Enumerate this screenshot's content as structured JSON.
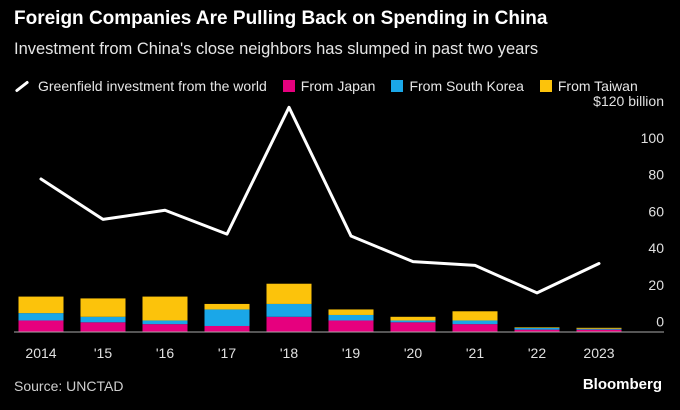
{
  "header": {
    "title": "Foreign Companies Are Pulling Back on Spending in China",
    "subtitle": "Investment from China's close neighbors has slumped in past two years"
  },
  "legend": [
    {
      "label": "Greenfield investment from the world",
      "kind": "line",
      "color": "#ffffff"
    },
    {
      "label": "From Japan",
      "kind": "box",
      "color": "#e6007e"
    },
    {
      "label": "From South Korea",
      "kind": "box",
      "color": "#1aa7e8"
    },
    {
      "label": "From Taiwan",
      "kind": "box",
      "color": "#fcc30b"
    }
  ],
  "chart_data": {
    "type": "bar",
    "categories": [
      "2014",
      "'15",
      "'16",
      "'17",
      "'18",
      "'19",
      "'20",
      "'21",
      "'22",
      "2023"
    ],
    "stacked": true,
    "series": [
      {
        "name": "From Japan",
        "color": "#e6007e",
        "values": [
          6,
          5,
          4,
          3,
          8,
          6,
          5,
          4,
          1,
          1
        ]
      },
      {
        "name": "From South Korea",
        "color": "#1aa7e8",
        "values": [
          4,
          3,
          2,
          9,
          7,
          3,
          1,
          2,
          1,
          0.5
        ]
      },
      {
        "name": "From Taiwan",
        "color": "#fcc30b",
        "values": [
          9,
          10,
          13,
          3,
          11,
          3,
          2,
          5,
          0.3,
          0.5
        ]
      }
    ],
    "line": {
      "name": "Greenfield investment from the world",
      "color": "#ffffff",
      "values": [
        83,
        61,
        66,
        53,
        122,
        52,
        38,
        36,
        21,
        37
      ]
    },
    "yaxis": {
      "min": 0,
      "max": 120,
      "ticks": [
        0,
        20,
        40,
        60,
        80,
        100,
        120
      ],
      "tick_labels": [
        "0",
        "20",
        "40",
        "60",
        "80",
        "100",
        "$120 billion"
      ],
      "position": "right"
    },
    "grid": false,
    "legend_position": "top"
  },
  "footer": {
    "source": "Source: UNCTAD",
    "brand": "Bloomberg"
  }
}
